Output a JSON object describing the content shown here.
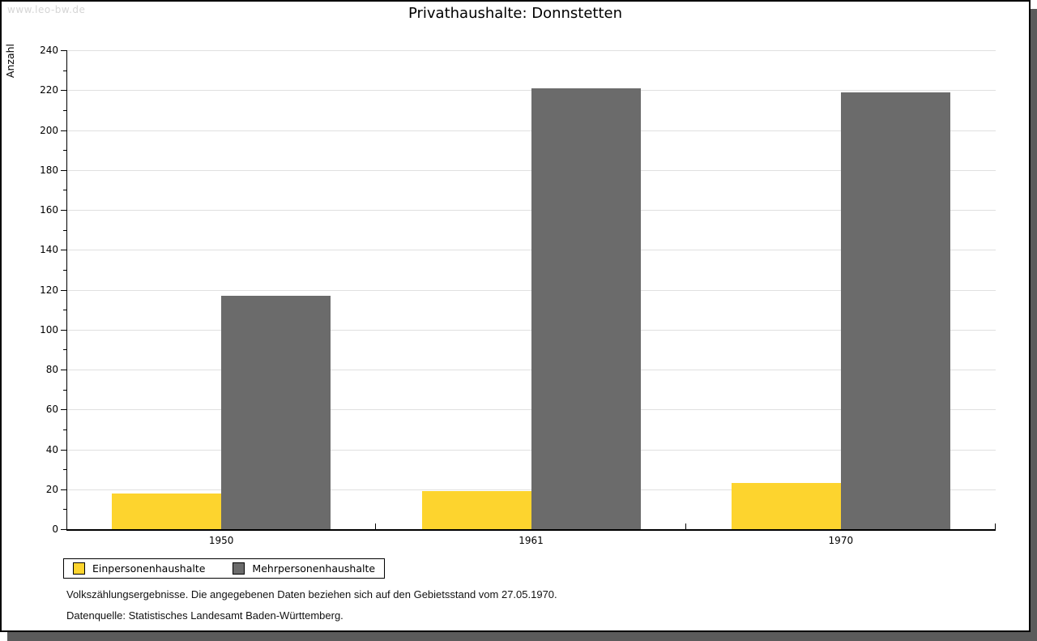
{
  "watermark": "www.leo-bw.de",
  "chart_data": {
    "type": "bar",
    "title": "Privathaushalte: Donnstetten",
    "xlabel": "",
    "ylabel": "Anzahl",
    "categories": [
      "1950",
      "1961",
      "1970"
    ],
    "series": [
      {
        "name": "Einpersonenhaushalte",
        "color": "#fdd42e",
        "values": [
          18,
          19,
          23
        ]
      },
      {
        "name": "Mehrpersonenhaushalte",
        "color": "#6b6b6b",
        "values": [
          117,
          221,
          219
        ]
      }
    ],
    "ylim": [
      0,
      240
    ],
    "ytick_step": 20,
    "yminor_step": 10,
    "grid": true,
    "gridline_color": "#e0e0e0",
    "legend_position": "bottom-left"
  },
  "footer": {
    "line1": "Volkszählungsergebnisse. Die angegebenen Daten beziehen sich auf den Gebietsstand vom 27.05.1970.",
    "line2": "Datenquelle: Statistisches Landesamt Baden-Württemberg."
  }
}
